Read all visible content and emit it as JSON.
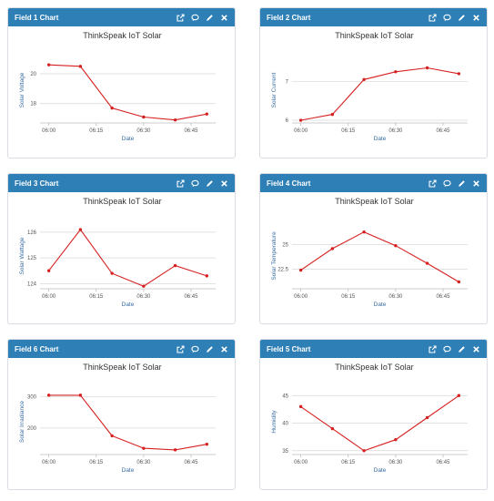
{
  "colors": {
    "header": "#2d7fb6",
    "series": "#d62020"
  },
  "tool_icons": [
    "external-link-icon",
    "comment-icon",
    "pencil-icon",
    "close-icon"
  ],
  "panels": [
    {
      "header": "Field 1 Chart",
      "chart_data": {
        "type": "line",
        "title": "ThinkSpeak IoT Solar",
        "xlabel": "Date",
        "ylabel": "Solar Voltage",
        "x": [
          "06:00",
          "06:10",
          "06:20",
          "06:30",
          "06:40",
          "06:50"
        ],
        "values": [
          20.6,
          20.5,
          17.7,
          17.1,
          16.9,
          17.3
        ],
        "xticks": [
          "06:00",
          "06:15",
          "06:30",
          "06:45"
        ],
        "yticks": [
          "20",
          "18"
        ],
        "ylim": [
          16.7,
          21.1
        ],
        "grid": true
      }
    },
    {
      "header": "Field 2 Chart",
      "chart_data": {
        "type": "line",
        "title": "ThinkSpeak IoT Solar",
        "xlabel": "Date",
        "ylabel": "Solar Current",
        "x": [
          "06:00",
          "06:10",
          "06:20",
          "06:30",
          "06:40",
          "06:50"
        ],
        "values": [
          6.0,
          6.15,
          7.05,
          7.25,
          7.35,
          7.2
        ],
        "xticks": [
          "06:00",
          "06:15",
          "06:30",
          "06:45"
        ],
        "yticks": [
          "7",
          "6"
        ],
        "ylim": [
          5.93,
          7.62
        ],
        "grid": true
      }
    },
    {
      "header": "Field 3 Chart",
      "chart_data": {
        "type": "line",
        "title": "ThinkSpeak IoT Solar",
        "xlabel": "Date",
        "ylabel": "Solar Wattage",
        "x": [
          "06:00",
          "06:10",
          "06:20",
          "06:30",
          "06:40",
          "06:50"
        ],
        "values": [
          124.5,
          126.1,
          124.4,
          123.9,
          124.7,
          124.3
        ],
        "xticks": [
          "06:00",
          "06:15",
          "06:30",
          "06:45"
        ],
        "yticks": [
          "126",
          "125",
          "124"
        ],
        "ylim": [
          123.8,
          126.35
        ],
        "grid": true
      }
    },
    {
      "header": "Field 4 Chart",
      "chart_data": {
        "type": "line",
        "title": "ThinkSpeak IoT Solar",
        "xlabel": "Date",
        "ylabel": "Solar Temperature",
        "x": [
          "06:00",
          "06:10",
          "06:20",
          "06:30",
          "06:40",
          "06:50"
        ],
        "values": [
          22.4,
          24.6,
          26.3,
          24.9,
          23.1,
          21.2
        ],
        "xticks": [
          "06:00",
          "06:15",
          "06:30",
          "06:45"
        ],
        "yticks": [
          "25",
          "22.5"
        ],
        "ylim": [
          20.5,
          27.2
        ],
        "grid": true
      }
    },
    {
      "header": "Field 6 Chart",
      "chart_data": {
        "type": "line",
        "title": "ThinkSpeak IoT Solar",
        "xlabel": "Date",
        "ylabel": "Solar Irradiance",
        "x": [
          "06:00",
          "06:10",
          "06:20",
          "06:30",
          "06:40",
          "06:50"
        ],
        "values": [
          305,
          305,
          175,
          135,
          130,
          148
        ],
        "xticks": [
          "06:00",
          "06:15",
          "06:30",
          "06:45"
        ],
        "yticks": [
          "300",
          "200"
        ],
        "ylim": [
          115,
          325
        ],
        "grid": true
      }
    },
    {
      "header": "Field 5 Chart",
      "chart_data": {
        "type": "line",
        "title": "ThinkSpeak IoT Solar",
        "xlabel": "Date",
        "ylabel": "Humidity",
        "x": [
          "06:00",
          "06:10",
          "06:20",
          "06:30",
          "06:40",
          "06:50"
        ],
        "values": [
          43,
          39,
          35,
          37,
          41,
          45
        ],
        "xticks": [
          "06:00",
          "06:15",
          "06:30",
          "06:45"
        ],
        "yticks": [
          "45",
          "40",
          "35"
        ],
        "ylim": [
          34.3,
          46.2
        ],
        "grid": true
      }
    }
  ]
}
